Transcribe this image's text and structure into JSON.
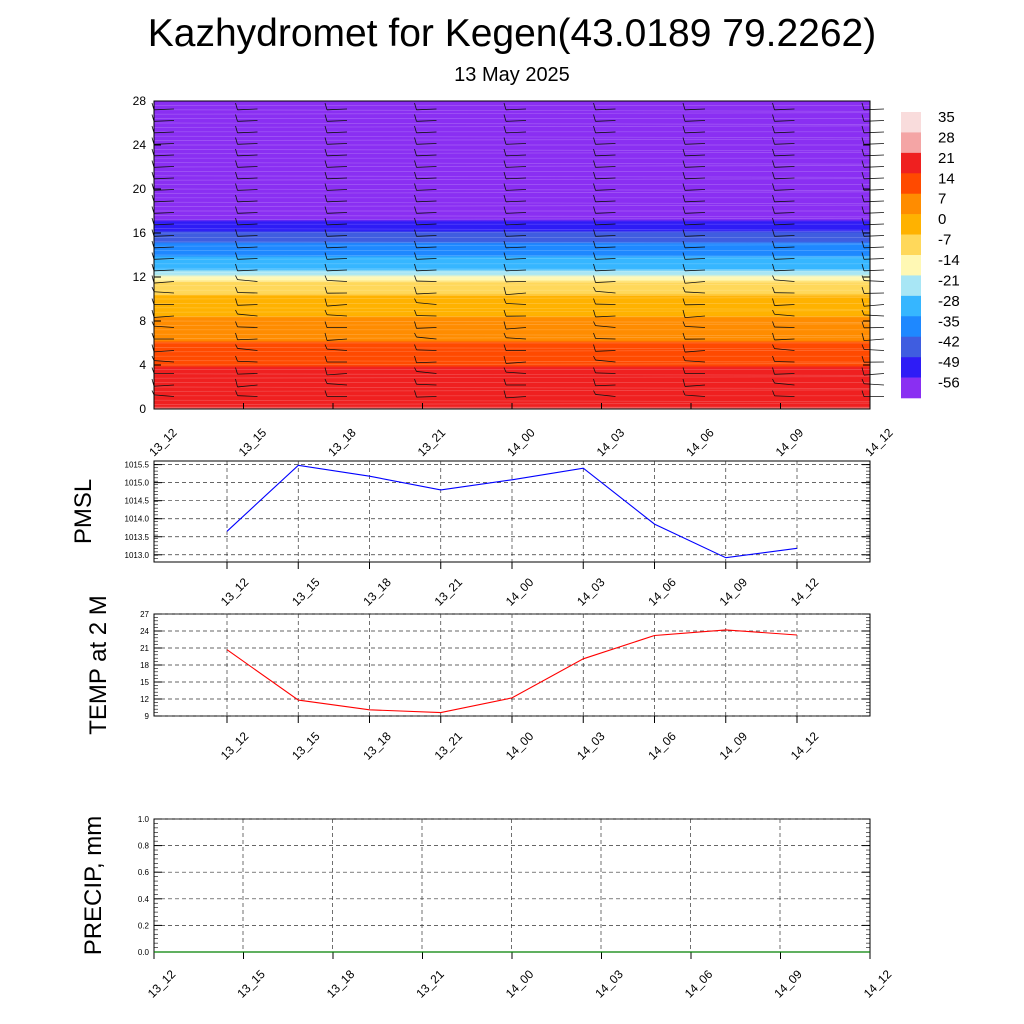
{
  "title": "Kazhydromet for Kegen(43.0189 79.2262)",
  "subtitle": "13 May 2025",
  "chart_data": [
    {
      "type": "heatmap",
      "name": "cross-section",
      "x_ticks": [
        "13_12",
        "13_15",
        "13_18",
        "13_21",
        "14_00",
        "14_03",
        "14_06",
        "14_09",
        "14_12"
      ],
      "y_ticks": [
        0,
        4,
        8,
        12,
        16,
        20,
        24,
        28
      ],
      "ylim": [
        0,
        28
      ],
      "colorbar": {
        "labels": [
          "35",
          "28",
          "21",
          "14",
          "7",
          "0",
          "-7",
          "-14",
          "-21",
          "-28",
          "-35",
          "-42",
          "-49",
          "-56"
        ],
        "colors": [
          "#f9dcdc",
          "#f4a5a5",
          "#ef2020",
          "#ff4a00",
          "#ff8c00",
          "#ffb200",
          "#ffd85a",
          "#fff8b4",
          "#a8e6f5",
          "#36b6ff",
          "#1e88ff",
          "#3f5de0",
          "#2e1cf6",
          "#8a2ff2"
        ]
      },
      "profile": [
        {
          "level": 0,
          "value": 28
        },
        {
          "level": 3,
          "value": 24
        },
        {
          "level": 6,
          "value": 14
        },
        {
          "level": 10,
          "value": 2
        },
        {
          "level": 11.5,
          "value": -7
        },
        {
          "level": 12.5,
          "value": -21
        },
        {
          "level": 15,
          "value": -35
        },
        {
          "level": 17,
          "value": -49
        },
        {
          "level": 20,
          "value": -60
        },
        {
          "level": 22,
          "value": -56
        },
        {
          "level": 23,
          "value": -63
        },
        {
          "level": 28,
          "value": -63
        }
      ]
    },
    {
      "type": "line",
      "name": "pmsl",
      "ylabel": "PMSL",
      "x_ticks": [
        "13_12",
        "13_15",
        "13_18",
        "13_21",
        "14_00",
        "14_03",
        "14_06",
        "14_09",
        "14_12"
      ],
      "y_ticks": [
        "1013.0",
        "1013.5",
        "1014.0",
        "1014.5",
        "1015.0",
        "1015.5"
      ],
      "ylim": [
        1012.8,
        1015.6
      ],
      "values": [
        1013.65,
        1015.48,
        1015.18,
        1014.8,
        1015.08,
        1015.4,
        1013.85,
        1012.92,
        1013.18
      ],
      "color": "#0000ff"
    },
    {
      "type": "line",
      "name": "temp",
      "ylabel": "TEMP at 2 M",
      "x_ticks": [
        "13_12",
        "13_15",
        "13_18",
        "13_21",
        "14_00",
        "14_03",
        "14_06",
        "14_09",
        "14_12"
      ],
      "y_ticks": [
        "9",
        "12",
        "15",
        "18",
        "21",
        "24",
        "27"
      ],
      "ylim": [
        9,
        27
      ],
      "values": [
        20.7,
        11.8,
        10.1,
        9.6,
        12.2,
        19.1,
        23.2,
        24.2,
        23.3
      ],
      "color": "#ff0000"
    },
    {
      "type": "line",
      "name": "precip",
      "ylabel": "PRECIP, mm",
      "x_ticks": [
        "13_12",
        "13_15",
        "13_18",
        "13_21",
        "14_00",
        "14_03",
        "14_06",
        "14_09",
        "14_12"
      ],
      "y_ticks": [
        "0.0",
        "0.2",
        "0.4",
        "0.6",
        "0.8",
        "1.0"
      ],
      "ylim": [
        0,
        1.0
      ],
      "values": [
        0,
        0,
        0,
        0,
        0,
        0,
        0,
        0,
        0
      ],
      "color": "#008000"
    }
  ]
}
